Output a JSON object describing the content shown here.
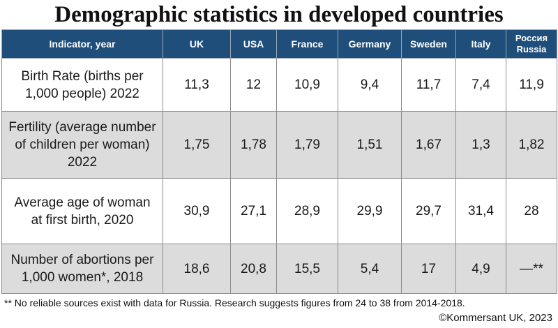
{
  "title": "Demographic statistics in developed countries",
  "table": {
    "header": {
      "indicator": "Indicator, year",
      "countries": [
        "UK",
        "USA",
        "France",
        "Germany",
        "Sweden",
        "Italy"
      ],
      "russia_ru": "Россия",
      "russia_en": "Russia"
    },
    "rows": [
      {
        "label": "Birth Rate (births per 1,000 people) 2022",
        "values": [
          "11,3",
          "12",
          "10,9",
          "9,4",
          "11,7",
          "7,4",
          "11,9"
        ]
      },
      {
        "label": "Fertility (average number of children per woman) 2022",
        "values": [
          "1,75",
          "1,78",
          "1,79",
          "1,51",
          "1,67",
          "1,3",
          "1,82"
        ]
      },
      {
        "label": "Average age of woman at first birth, 2020",
        "values": [
          "30,9",
          "27,1",
          "28,9",
          "29,9",
          "29,7",
          "31,4",
          "28"
        ]
      },
      {
        "label": "Number of abortions per 1,000 women*, 2018",
        "values": [
          "18,6",
          "20,8",
          "15,5",
          "5,4",
          "17",
          "4,9",
          "—**"
        ]
      }
    ]
  },
  "footnote": "** No reliable sources exist with data for Russia. Research suggests figures from 24 to 38 from 2014-2018.",
  "credit": "©Kommersant UK, 2023",
  "colors": {
    "header_bg": "#1f4e7a",
    "alt_row_bg": "#dcdcdc"
  }
}
